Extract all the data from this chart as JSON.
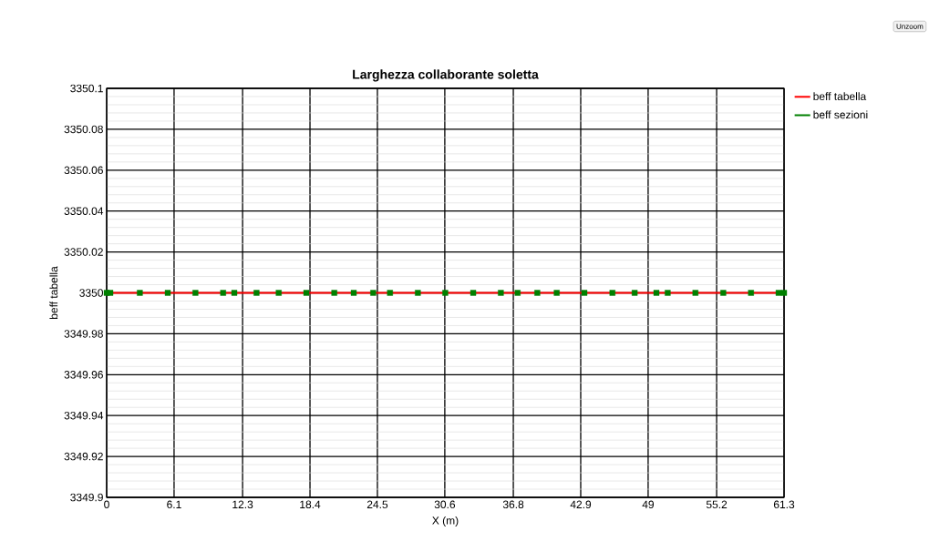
{
  "chart_data": {
    "type": "line",
    "title": "Larghezza collaborante soletta",
    "xlabel": "X (m)",
    "ylabel": "beff tabella",
    "annotations": [
      "Unzoom"
    ],
    "series": [
      {
        "name": "beff tabella",
        "color": "#ff0000",
        "marker": "none",
        "x": [
          0,
          61.3
        ],
        "values": [
          3350,
          3350
        ]
      },
      {
        "name": "beff sezioni",
        "type": "scatter",
        "color": "#008000",
        "marker": "square",
        "x": [
          0,
          0.33,
          3.0,
          5.53,
          8.03,
          10.54,
          11.55,
          13.56,
          15.57,
          18.07,
          20.6,
          22.36,
          24.12,
          25.64,
          28.16,
          30.64,
          33.17,
          35.67,
          37.19,
          38.97,
          40.73,
          43.23,
          45.77,
          47.78,
          49.75,
          50.77,
          53.28,
          55.8,
          58.31,
          60.81,
          61.3
        ],
        "values": [
          3350,
          3350,
          3350,
          3350,
          3350,
          3350,
          3350,
          3350,
          3350,
          3350,
          3350,
          3350,
          3350,
          3350,
          3350,
          3350,
          3350,
          3350,
          3350,
          3350,
          3350,
          3350,
          3350,
          3350,
          3350,
          3350,
          3350,
          3350,
          3350,
          3350,
          3350
        ]
      }
    ],
    "xlim": [
      0,
      61.3
    ],
    "ylim": [
      3349.9,
      3350.1
    ],
    "xticks": [
      0,
      6.1,
      12.3,
      18.4,
      24.5,
      30.6,
      36.8,
      42.9,
      49,
      55.2,
      61.3
    ],
    "yticks": [
      3349.9,
      3349.92,
      3349.94,
      3349.96,
      3349.98,
      3350,
      3350.02,
      3350.04,
      3350.06,
      3350.08,
      3350.1
    ],
    "grid": true,
    "legend": "top right"
  }
}
